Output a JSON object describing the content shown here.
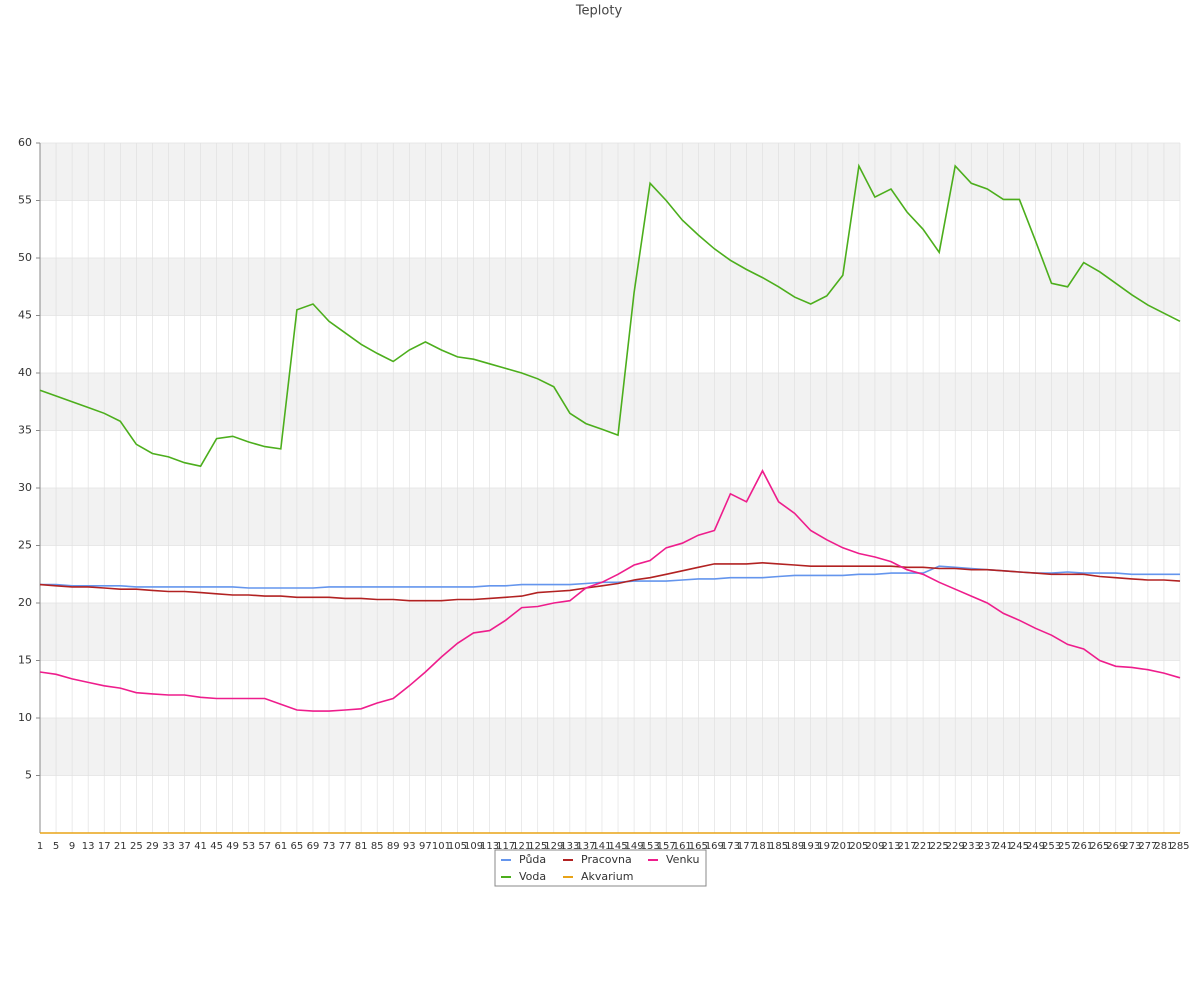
{
  "chart_data": {
    "type": "line",
    "title": "Teploty",
    "categories": [
      1,
      5,
      9,
      13,
      17,
      21,
      25,
      29,
      33,
      37,
      41,
      45,
      49,
      53,
      57,
      61,
      65,
      69,
      73,
      77,
      81,
      85,
      89,
      93,
      97,
      101,
      105,
      109,
      113,
      117,
      121,
      125,
      129,
      133,
      137,
      141,
      145,
      149,
      153,
      157,
      161,
      165,
      169,
      173,
      177,
      181,
      185,
      189,
      193,
      197,
      201,
      205,
      209,
      213,
      217,
      221,
      225,
      229,
      233,
      237,
      241,
      245,
      249,
      253,
      257,
      261,
      265,
      269,
      273,
      277,
      281,
      285
    ],
    "series": [
      {
        "name": "Půda",
        "color": "#6495ed",
        "values": [
          21.6,
          21.6,
          21.5,
          21.5,
          21.5,
          21.5,
          21.4,
          21.4,
          21.4,
          21.4,
          21.4,
          21.4,
          21.4,
          21.3,
          21.3,
          21.3,
          21.3,
          21.3,
          21.4,
          21.4,
          21.4,
          21.4,
          21.4,
          21.4,
          21.4,
          21.4,
          21.4,
          21.4,
          21.5,
          21.5,
          21.6,
          21.6,
          21.6,
          21.6,
          21.7,
          21.8,
          21.8,
          21.9,
          21.9,
          21.9,
          22.0,
          22.1,
          22.1,
          22.2,
          22.2,
          22.2,
          22.3,
          22.4,
          22.4,
          22.4,
          22.4,
          22.5,
          22.5,
          22.6,
          22.6,
          22.6,
          23.2,
          23.1,
          23.0,
          22.9,
          22.8,
          22.7,
          22.6,
          22.6,
          22.7,
          22.6,
          22.6,
          22.6,
          22.5,
          22.5,
          22.5,
          22.5
        ]
      },
      {
        "name": "Pracovna",
        "color": "#b22222",
        "values": [
          21.6,
          21.5,
          21.4,
          21.4,
          21.3,
          21.2,
          21.2,
          21.1,
          21.0,
          21.0,
          20.9,
          20.8,
          20.7,
          20.7,
          20.6,
          20.6,
          20.5,
          20.5,
          20.5,
          20.4,
          20.4,
          20.3,
          20.3,
          20.2,
          20.2,
          20.2,
          20.3,
          20.3,
          20.4,
          20.5,
          20.6,
          20.9,
          21.0,
          21.1,
          21.3,
          21.5,
          21.7,
          22.0,
          22.2,
          22.5,
          22.8,
          23.1,
          23.4,
          23.4,
          23.4,
          23.5,
          23.4,
          23.3,
          23.2,
          23.2,
          23.2,
          23.2,
          23.2,
          23.2,
          23.1,
          23.1,
          23.0,
          23.0,
          22.9,
          22.9,
          22.8,
          22.7,
          22.6,
          22.5,
          22.5,
          22.5,
          22.3,
          22.2,
          22.1,
          22.0,
          22.0,
          21.9
        ]
      },
      {
        "name": "Venku",
        "color": "#ee1d8c",
        "values": [
          14.0,
          13.8,
          13.4,
          13.1,
          12.8,
          12.6,
          12.2,
          12.1,
          12.0,
          12.0,
          11.8,
          11.7,
          11.7,
          11.7,
          11.7,
          11.2,
          10.7,
          10.6,
          10.6,
          10.7,
          10.8,
          11.3,
          11.7,
          12.8,
          14.0,
          15.3,
          16.5,
          17.4,
          17.6,
          18.5,
          19.6,
          19.7,
          20.0,
          20.2,
          21.3,
          21.8,
          22.5,
          23.3,
          23.7,
          24.8,
          25.2,
          25.9,
          26.3,
          29.5,
          28.8,
          31.5,
          28.8,
          27.8,
          26.3,
          25.5,
          24.8,
          24.3,
          24.0,
          23.6,
          22.9,
          22.5,
          21.8,
          21.2,
          20.6,
          20.0,
          19.1,
          18.5,
          17.8,
          17.2,
          16.4,
          16.0,
          15.0,
          14.5,
          14.4,
          14.2,
          13.9,
          13.5
        ]
      },
      {
        "name": "Voda",
        "color": "#4cae1c",
        "values": [
          38.5,
          38.0,
          37.5,
          37.0,
          36.5,
          35.8,
          33.8,
          33.0,
          32.7,
          32.2,
          31.9,
          34.3,
          34.5,
          34.0,
          33.6,
          33.4,
          45.5,
          46.0,
          44.5,
          43.5,
          42.5,
          41.7,
          41.0,
          42.0,
          42.7,
          42.0,
          41.4,
          41.2,
          40.8,
          40.4,
          40.0,
          39.5,
          38.8,
          36.5,
          35.6,
          35.1,
          34.6,
          47.0,
          56.5,
          55.0,
          53.3,
          52.0,
          50.8,
          49.8,
          49.0,
          48.3,
          47.5,
          46.6,
          46.0,
          46.7,
          48.5,
          58.0,
          55.3,
          56.0,
          54.0,
          52.5,
          50.5,
          58.0,
          56.5,
          56.0,
          55.1,
          55.1,
          51.5,
          47.8,
          47.5,
          49.6,
          48.8,
          47.8,
          46.8,
          45.9,
          45.2,
          44.5
        ]
      },
      {
        "name": "Akvarium",
        "color": "#e8a317",
        "values": [
          0,
          0,
          0,
          0,
          0,
          0,
          0,
          0,
          0,
          0,
          0,
          0,
          0,
          0,
          0,
          0,
          0,
          0,
          0,
          0,
          0,
          0,
          0,
          0,
          0,
          0,
          0,
          0,
          0,
          0,
          0,
          0,
          0,
          0,
          0,
          0,
          0,
          0,
          0,
          0,
          0,
          0,
          0,
          0,
          0,
          0,
          0,
          0,
          0,
          0,
          0,
          0,
          0,
          0,
          0,
          0,
          0,
          0,
          0,
          0,
          0,
          0,
          0,
          0,
          0,
          0,
          0,
          0,
          0,
          0,
          0,
          0
        ]
      }
    ],
    "ylim": [
      0,
      60
    ],
    "yticks": [
      5,
      10,
      15,
      20,
      25,
      30,
      35,
      40,
      45,
      50,
      55,
      60
    ],
    "grid": true,
    "legend": "bottom"
  }
}
